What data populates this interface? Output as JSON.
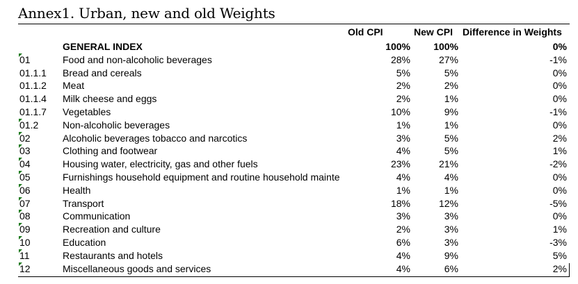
{
  "title": "Annex1. Urban, new and old Weights",
  "columns": {
    "old": "Old CPI",
    "new": "New CPI",
    "diff": "Difference in Weights"
  },
  "rows": [
    {
      "code": "",
      "desc": "GENERAL INDEX",
      "old": "100%",
      "new": "100%",
      "diff": "0%",
      "bold": true
    },
    {
      "code": "01",
      "desc": "Food and non-alcoholic beverages",
      "old": "28%",
      "new": "27%",
      "diff": "-1%",
      "flag": true
    },
    {
      "code": "01.1.1",
      "desc": "Bread and cereals",
      "old": "5%",
      "new": "5%",
      "diff": "0%"
    },
    {
      "code": "01.1.2",
      "desc": "Meat",
      "old": "2%",
      "new": "2%",
      "diff": "0%"
    },
    {
      "code": "01.1.4",
      "desc": "Milk cheese and eggs",
      "old": "2%",
      "new": "1%",
      "diff": "0%"
    },
    {
      "code": "01.1.7",
      "desc": "Vegetables",
      "old": "10%",
      "new": "9%",
      "diff": "-1%"
    },
    {
      "code": "01.2",
      "desc": "Non-alcoholic beverages",
      "old": "1%",
      "new": "1%",
      "diff": "0%",
      "flag": true
    },
    {
      "code": "02",
      "desc": "Alcoholic beverages tobacco and narcotics",
      "old": "3%",
      "new": "5%",
      "diff": "2%",
      "flag": true
    },
    {
      "code": "03",
      "desc": "Clothing and footwear",
      "old": "4%",
      "new": "5%",
      "diff": "1%",
      "flag": true
    },
    {
      "code": "04",
      "desc": "Housing  water,  electricity,  gas and other fuels",
      "old": "23%",
      "new": "21%",
      "diff": "-2%",
      "flag": true
    },
    {
      "code": "05",
      "desc": "Furnishings  household equipment and routine household maintе",
      "old": "4%",
      "new": "4%",
      "diff": "0%",
      "flag": true
    },
    {
      "code": "06",
      "desc": "Health",
      "old": "1%",
      "new": "1%",
      "diff": "0%",
      "flag": true
    },
    {
      "code": "07",
      "desc": "Transport",
      "old": "18%",
      "new": "12%",
      "diff": "-5%",
      "flag": true
    },
    {
      "code": "08",
      "desc": "Communication",
      "old": "3%",
      "new": "3%",
      "diff": "0%",
      "flag": true
    },
    {
      "code": "09",
      "desc": "Recreation and culture",
      "old": "2%",
      "new": "3%",
      "diff": "1%",
      "flag": true
    },
    {
      "code": "10",
      "desc": "Education",
      "old": "6%",
      "new": "3%",
      "diff": "-3%",
      "flag": true
    },
    {
      "code": "11",
      "desc": "Restaurants and hotels",
      "old": "4%",
      "new": "9%",
      "diff": "5%",
      "flag": true
    },
    {
      "code": "12",
      "desc": "Miscellaneous goods and services",
      "old": "4%",
      "new": "6%",
      "diff": "2%",
      "flag": true
    }
  ]
}
